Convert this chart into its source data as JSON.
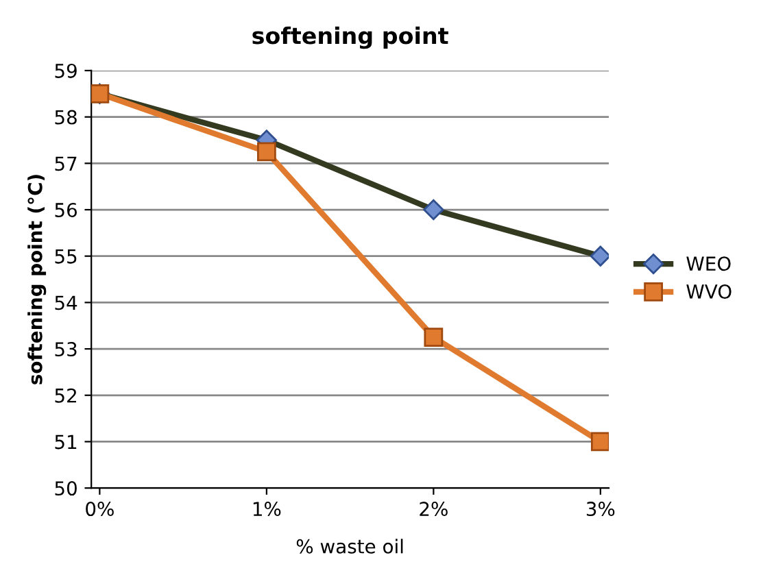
{
  "chart_data": {
    "type": "line",
    "title": "softening point",
    "xlabel": "% waste oil",
    "ylabel": "softening point (°C)",
    "categories": [
      "0%",
      "1%",
      "2%",
      "3%"
    ],
    "series": [
      {
        "name": "WEO",
        "color": "#333a1f",
        "marker": "diamond",
        "values": [
          58.5,
          57.5,
          56,
          55
        ]
      },
      {
        "name": "WVO",
        "color": "#e07a2e",
        "marker": "square",
        "values": [
          58.5,
          57.25,
          53.25,
          51
        ]
      }
    ],
    "ylim": [
      50,
      59
    ],
    "yticks": [
      50,
      51,
      52,
      53,
      54,
      55,
      56,
      57,
      58,
      59
    ],
    "grid": "y",
    "legend": "right",
    "line_style": "solid"
  }
}
